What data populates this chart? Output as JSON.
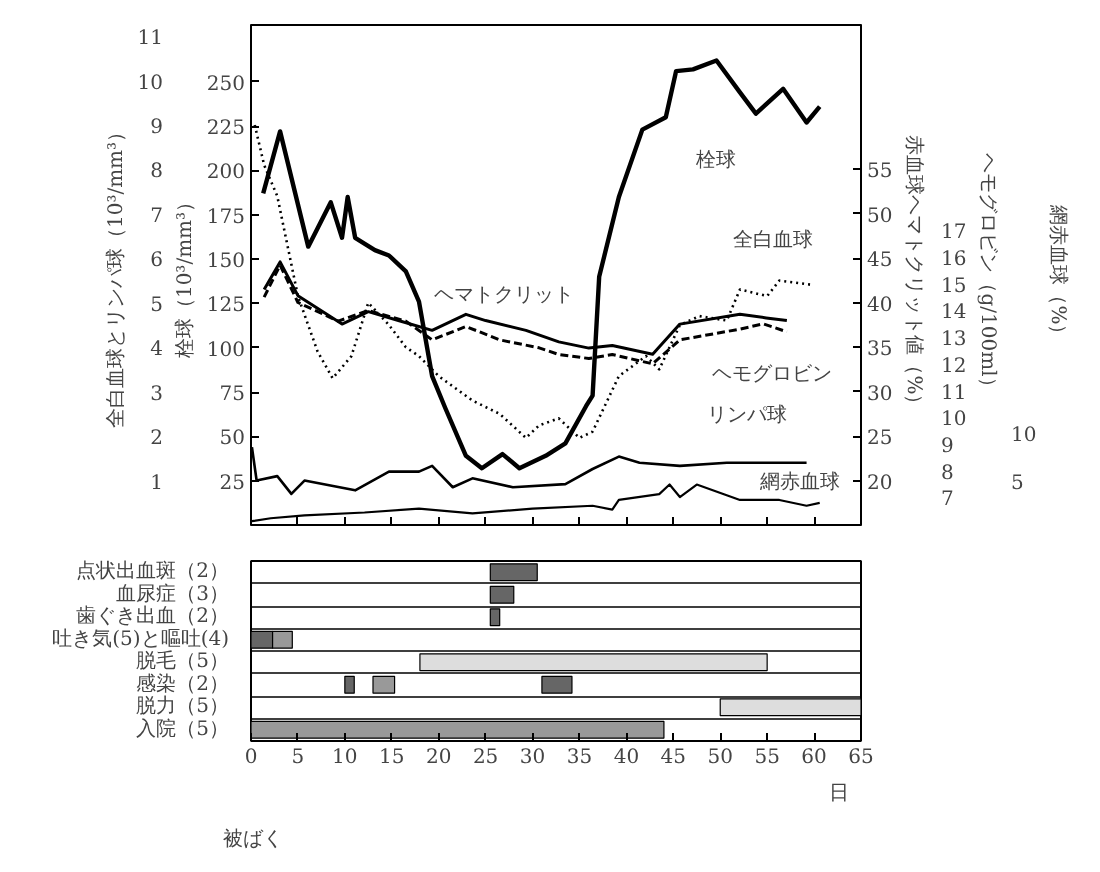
{
  "chart_data": [
    {
      "type": "line",
      "xlim": [
        0,
        65
      ],
      "xticks": [
        0,
        5,
        10,
        15,
        20,
        25,
        30,
        35,
        40,
        45,
        50,
        55,
        60,
        65
      ],
      "tick_labels": "y",
      "grid": false,
      "ylim": [
        0,
        11.25
      ],
      "yticks": [
        1,
        2,
        3,
        4,
        5,
        6,
        7,
        8,
        9,
        10,
        11
      ],
      "ylabel": "全白血球とリンパ球（10³/mm³）",
      "y2lim": [
        15,
        71.25
      ],
      "y2ticks": [
        20,
        25,
        30,
        35,
        40,
        45,
        50,
        55
      ],
      "y2label": "赤血球ヘマトクリット値（%）",
      "y3lim": [
        0,
        282
      ],
      "y3ticks": [
        25,
        50,
        75,
        100,
        125,
        150,
        175,
        200,
        225,
        250
      ],
      "y3label": "栓球（10³/mm³）",
      "series": [
        {
          "name": "栓球",
          "color": "#000000",
          "axis": "y3",
          "line_style": "solid",
          "x": [
            1.3,
            3.1,
            6.1,
            8.5,
            9.7,
            10.3,
            11.1,
            13.2,
            14.7,
            16.5,
            17.9,
            19.3,
            20.7,
            22.9,
            24.6,
            26.8,
            28.6,
            31.4,
            33.5,
            35.7,
            36.4,
            37.1,
            39.2,
            41.7,
            44.2,
            45.3,
            47.1,
            49.6,
            52.1,
            53.8,
            56.7,
            59.2,
            60.6
          ],
          "values": [
            187,
            222,
            157,
            182,
            162,
            185,
            162,
            155,
            152,
            143,
            126,
            84,
            66,
            39,
            32,
            40,
            32,
            39,
            46,
            67,
            73,
            140,
            185,
            223,
            230,
            256,
            257,
            262,
            244,
            232,
            246,
            227,
            236
          ]
        },
        {
          "name": "ヘマトクリット",
          "color": "#000000",
          "axis": "y2",
          "line_style": "solid",
          "x": [
            1.4,
            3.1,
            5.0,
            9.7,
            12.5,
            15.7,
            19.3,
            22.9,
            25.0,
            29.3,
            32.8,
            36.0,
            38.5,
            42.8,
            45.7,
            52.1,
            54.9,
            57.1
          ],
          "values": [
            41.5,
            44.6,
            40.8,
            37.6,
            39.0,
            38.0,
            36.9,
            38.7,
            38.0,
            36.9,
            35.6,
            34.9,
            35.2,
            34.2,
            37.6,
            38.7,
            38.3,
            38.0
          ]
        },
        {
          "name": "全白血球",
          "color": "#000000",
          "line_style": "dotted",
          "x": [
            0.4,
            1.4,
            2.8,
            5.0,
            7.1,
            8.7,
            10.7,
            12.5,
            14.7,
            16.5,
            17.9,
            20.0,
            23.6,
            26.5,
            29.3,
            30.7,
            32.8,
            35.0,
            36.4,
            39.2,
            42.1,
            43.5,
            45.7,
            47.8,
            50.7,
            52.1,
            55.0,
            56.3,
            59.9
          ],
          "values": [
            9.0,
            8.1,
            7.4,
            5.15,
            3.9,
            3.3,
            3.8,
            5.0,
            4.5,
            4.0,
            3.8,
            3.35,
            2.8,
            2.5,
            1.96,
            2.24,
            2.4,
            1.96,
            2.1,
            3.35,
            3.8,
            3.5,
            4.5,
            4.7,
            4.6,
            5.3,
            5.15,
            5.5,
            5.4
          ]
        },
        {
          "name": "リンパ球",
          "color": "#000000",
          "line_style": "solid",
          "x": [
            0.1,
            0.6,
            2.8,
            4.3,
            5.7,
            11.1,
            14.7,
            17.9,
            19.3,
            21.5,
            23.6,
            27.9,
            33.5,
            36.4,
            39.2,
            41.4,
            45.7,
            50.7,
            59.2
          ],
          "values": [
            1.75,
            1.0,
            1.1,
            0.7,
            1.0,
            0.78,
            1.2,
            1.2,
            1.33,
            0.85,
            1.05,
            0.85,
            0.92,
            1.26,
            1.54,
            1.4,
            1.33,
            1.4,
            1.4
          ]
        }
      ]
    },
    {
      "type": "line",
      "xlim": [
        0,
        65
      ],
      "tick_labels": "y",
      "ylim": [
        5.96,
        24.7
      ],
      "yticks": [
        7,
        8,
        9,
        10,
        11,
        12,
        13,
        14,
        15,
        16,
        17
      ],
      "ylabel": "ヘモグロビン（g/100ml）",
      "y2lim": [
        0.4,
        52.3
      ],
      "y2ticks": [
        5,
        10
      ],
      "y2label": "網赤血球（%）",
      "series": [
        {
          "name": "ヘモグロビン",
          "color": "#000000",
          "line_style": "dashed",
          "x": [
            1.4,
            3.1,
            5.0,
            9.3,
            12.5,
            16.5,
            19.3,
            22.9,
            26.5,
            30.7,
            32.8,
            36.0,
            38.5,
            42.8,
            45.7,
            52.1,
            54.6,
            57.1
          ],
          "values": [
            14.5,
            15.7,
            14.3,
            13.6,
            14.0,
            13.6,
            12.9,
            13.4,
            12.9,
            12.6,
            12.35,
            12.2,
            12.35,
            12.0,
            12.9,
            13.3,
            13.5,
            13.2
          ]
        },
        {
          "name": "網赤血球",
          "color": "#000000",
          "axis": "y2",
          "line_style": "solid",
          "x": [
            0.1,
            2.1,
            5.7,
            12.1,
            17.9,
            23.6,
            30.0,
            36.4,
            38.5,
            39.2,
            43.5,
            44.6,
            45.7,
            47.5,
            52.1,
            56.3,
            59.2,
            60.6
          ],
          "values": [
            0.8,
            1.1,
            1.4,
            1.7,
            2.1,
            1.6,
            2.1,
            2.4,
            2.0,
            3.0,
            3.6,
            4.6,
            3.3,
            4.6,
            3.0,
            3.0,
            2.4,
            2.7
          ]
        }
      ]
    },
    {
      "type": "bar",
      "orientation": "horizontal",
      "grid": "y",
      "xlim": [
        0,
        65
      ],
      "xticks": [
        0,
        5,
        10,
        15,
        20,
        25,
        30,
        35,
        40,
        45,
        50,
        55,
        60,
        65
      ],
      "xlabel": "日",
      "categories": [
        "点状出血斑（2）",
        "血尿症（3）",
        "歯ぐき出血（2）",
        "吐き気(5)と嘔吐(4)",
        "脱毛（5）",
        "感染（2）",
        "脱力（5）",
        "入院（5）"
      ],
      "annotations": [
        "被ばく"
      ],
      "series": [
        {
          "color": "#666666",
          "values": [
            5,
            2.5,
            1,
            2.3,
            null,
            1,
            null,
            null
          ],
          "base": [
            25.5,
            25.5,
            25.5,
            0,
            null,
            10,
            null,
            null
          ]
        },
        {
          "color": "#999999",
          "values": [
            null,
            null,
            null,
            2.1,
            null,
            2.3,
            null,
            44
          ],
          "base": [
            null,
            null,
            null,
            2.3,
            null,
            13,
            null,
            0
          ]
        },
        {
          "color": "#666666",
          "values": [
            null,
            null,
            null,
            null,
            null,
            3.2,
            null,
            null
          ],
          "base": [
            null,
            null,
            null,
            null,
            null,
            31,
            null,
            null
          ]
        },
        {
          "color": "#dddddd",
          "values": [
            null,
            null,
            null,
            null,
            37,
            null,
            15,
            null
          ],
          "base": [
            null,
            null,
            null,
            null,
            18,
            null,
            50,
            null
          ]
        }
      ]
    }
  ]
}
